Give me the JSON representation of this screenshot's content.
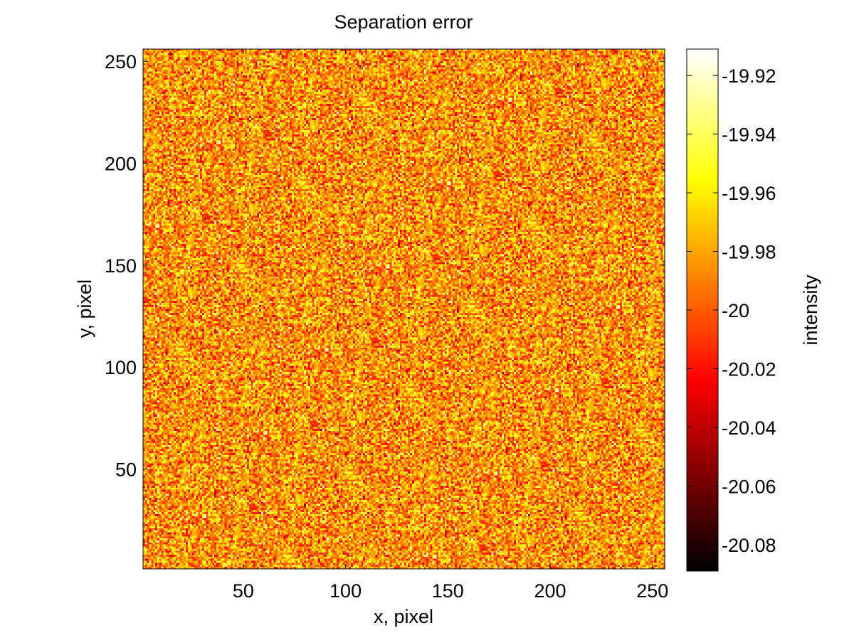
{
  "chart_data": {
    "type": "heatmap",
    "title": "Separation error",
    "xlabel": "x, pixel",
    "ylabel": "y, pixel",
    "colorbar_label": "intensity",
    "colormap": "hot",
    "grid": false,
    "rows": 256,
    "cols": 256,
    "xlim": [
      1,
      256
    ],
    "ylim": [
      1,
      256
    ],
    "xticks": [
      50,
      100,
      150,
      200,
      250
    ],
    "yticks": [
      50,
      100,
      150,
      200,
      250
    ],
    "clim": [
      -20.089,
      -19.911
    ],
    "cbar_ticks": [
      -19.92,
      -19.94,
      -19.96,
      -19.98,
      -20,
      -20.02,
      -20.04,
      -20.06,
      -20.08
    ],
    "value_distribution": {
      "mean": -19.985,
      "std": 0.022,
      "pattern": "spatially uncorrelated noise"
    }
  }
}
